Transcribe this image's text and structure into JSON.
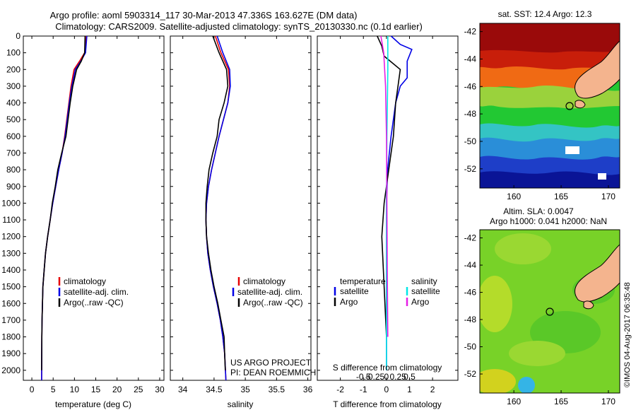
{
  "title": {
    "line1": "Argo profile: aoml 5903314_117 30-Mar-2013 47.336S 163.627E (DM data)",
    "line2": "Climatology: CARS2009. Satellite-adjusted climatology: synTS_20130330.nc (0.1d earlier)"
  },
  "colors": {
    "climatology": "#e60000",
    "satellite": "#0000e6",
    "argo": "#000000",
    "argo_salinity_diff": "#e61ee6",
    "satellite_salinity_diff": "#00e6e6"
  },
  "depth_axis": {
    "ticks": [
      "0",
      "100",
      "200",
      "300",
      "400",
      "500",
      "600",
      "700",
      "800",
      "900",
      "1000",
      "1100",
      "1200",
      "1300",
      "1400",
      "1500",
      "1600",
      "1700",
      "1800",
      "1900",
      "2000"
    ],
    "range": [
      0,
      2060
    ]
  },
  "temp_panel": {
    "xlabel": "temperature (deg C)",
    "xticks": [
      "0",
      "5",
      "10",
      "15",
      "20",
      "25",
      "30"
    ],
    "xlim": [
      -2,
      31
    ],
    "legend": [
      "climatology",
      "satellite-adj. clim.",
      "Argo(..raw -QC)"
    ]
  },
  "sal_panel": {
    "xlabel": "salinity",
    "xticks": [
      "34",
      "34.5",
      "35",
      "35.5",
      "36"
    ],
    "xlim": [
      33.8,
      36.05
    ],
    "legend": [
      "climatology",
      "satellite-adj. clim.",
      "Argo(..raw -QC)"
    ],
    "credit1": "US ARGO PROJECT",
    "credit2": "PI: DEAN ROEMMICH"
  },
  "diff_panel": {
    "xlabel": "T difference from climatology",
    "xticks": [
      "-2",
      "-1",
      "0",
      "1",
      "2"
    ],
    "xlim": [
      -3,
      3.1
    ],
    "top_label": "S difference from climatology",
    "sticks": [
      "-0.5",
      "-0.25",
      "0",
      "0.25",
      "0.5"
    ],
    "legend_temp_title": "temperature",
    "legend_sal_title": "salinity",
    "legend_items": [
      "satellite",
      "Argo"
    ]
  },
  "map_sst": {
    "title": "sat. SST: 12.4  Argo: 12.3",
    "xticks": [
      "160",
      "165",
      "170"
    ],
    "yticks": [
      "-42",
      "-44",
      "-46",
      "-48",
      "-50",
      "-52"
    ],
    "xlim": [
      156.4,
      171.2
    ],
    "ylim": [
      -53.4,
      -41.4
    ]
  },
  "map_sla": {
    "title1": "Altim. SLA: 0.0047",
    "title2": "Argo h1000: 0.041 h2000: NaN",
    "xticks": [
      "160",
      "165",
      "170"
    ],
    "yticks": [
      "-42",
      "-44",
      "-46",
      "-48",
      "-50",
      "-52"
    ],
    "xlim": [
      156.4,
      171.2
    ],
    "ylim": [
      -53.4,
      -41.4
    ]
  },
  "stamp": "©IMOS 04-Aug-2017 06:35:48",
  "chart_data": [
    {
      "type": "line",
      "panel": "temperature",
      "xlabel": "temperature (deg C)",
      "ylabel": "",
      "xlim": [
        -2,
        31
      ],
      "ylim": [
        2060,
        0
      ],
      "series": [
        {
          "name": "climatology",
          "x": [
            12.8,
            12.4,
            11.2,
            9.9,
            9.2,
            8.7,
            8.2,
            7.7,
            7.1,
            6.3,
            5.6,
            4.9,
            4.3,
            3.7,
            3.2,
            2.9,
            2.6,
            2.5,
            2.4,
            2.35,
            2.3
          ],
          "y": [
            0,
            100,
            150,
            200,
            300,
            400,
            500,
            600,
            700,
            800,
            900,
            1000,
            1100,
            1200,
            1300,
            1400,
            1500,
            1600,
            1700,
            1800,
            2060
          ]
        },
        {
          "name": "satellite-adj. clim.",
          "x": [
            12.9,
            12.6,
            11.5,
            10.2,
            9.4,
            8.8,
            8.3,
            7.8,
            7.1,
            6.3,
            5.6,
            4.9,
            4.3,
            3.7,
            3.2,
            2.9,
            2.6,
            2.5,
            2.4,
            2.35,
            2.3
          ],
          "y": [
            0,
            100,
            150,
            200,
            300,
            400,
            500,
            600,
            700,
            800,
            900,
            1000,
            1100,
            1200,
            1300,
            1400,
            1500,
            1600,
            1700,
            1800,
            2060
          ]
        },
        {
          "name": "Argo(..raw -QC)",
          "x": [
            12.5,
            12.4,
            11.6,
            10.5,
            9.6,
            9.0,
            8.5,
            8.0,
            7.0,
            6.1,
            5.5,
            4.8,
            4.3,
            3.7,
            3.2,
            2.9,
            2.6,
            2.5,
            2.4,
            2.35,
            2.3
          ],
          "y": [
            0,
            100,
            150,
            200,
            300,
            400,
            500,
            600,
            700,
            800,
            900,
            1000,
            1100,
            1200,
            1300,
            1400,
            1500,
            1600,
            1700,
            1800,
            2000
          ]
        }
      ]
    },
    {
      "type": "line",
      "panel": "salinity",
      "xlabel": "salinity",
      "ylabel": "",
      "xlim": [
        33.8,
        36.05
      ],
      "ylim": [
        2060,
        0
      ],
      "series": [
        {
          "name": "climatology",
          "x": [
            34.52,
            34.61,
            34.73,
            34.75,
            34.72,
            34.65,
            34.58,
            34.52,
            34.46,
            34.41,
            34.38,
            34.37,
            34.38,
            34.4,
            34.44,
            34.49,
            34.55,
            34.6,
            34.64,
            34.67,
            34.69
          ],
          "y": [
            0,
            100,
            200,
            300,
            400,
            500,
            600,
            700,
            800,
            900,
            1000,
            1100,
            1200,
            1300,
            1400,
            1500,
            1600,
            1700,
            1800,
            1900,
            2060
          ]
        },
        {
          "name": "satellite-adj. clim.",
          "x": [
            34.55,
            34.64,
            34.75,
            34.76,
            34.72,
            34.65,
            34.58,
            34.52,
            34.46,
            34.41,
            34.38,
            34.37,
            34.38,
            34.4,
            34.44,
            34.49,
            34.55,
            34.6,
            34.64,
            34.67,
            34.69
          ],
          "y": [
            0,
            100,
            200,
            300,
            400,
            500,
            600,
            700,
            800,
            900,
            1000,
            1100,
            1200,
            1300,
            1400,
            1500,
            1600,
            1700,
            1800,
            1900,
            2060
          ]
        },
        {
          "name": "Argo(..raw -QC)",
          "x": [
            34.48,
            34.58,
            34.7,
            34.72,
            34.66,
            34.58,
            34.55,
            34.48,
            34.42,
            34.39,
            34.37,
            34.37,
            34.38,
            34.41,
            34.45,
            34.5,
            34.56,
            34.61,
            34.66,
            34.67,
            34.68
          ],
          "y": [
            0,
            100,
            200,
            300,
            400,
            500,
            600,
            700,
            800,
            900,
            1000,
            1100,
            1200,
            1300,
            1400,
            1500,
            1600,
            1700,
            1800,
            1900,
            2000
          ]
        }
      ]
    },
    {
      "type": "line",
      "panel": "differences",
      "xlabel": "T difference from climatology",
      "ylabel": "",
      "xlim": [
        -3,
        3.1
      ],
      "ylim": [
        2060,
        0
      ],
      "series": [
        {
          "name": "temperature satellite",
          "x": [
            0.2,
            0.6,
            1.1,
            0.9,
            0.9,
            0.6,
            0.4,
            0.2,
            0.05,
            0.0,
            0.0,
            0.0
          ],
          "y": [
            0,
            50,
            80,
            150,
            250,
            300,
            400,
            600,
            800,
            1000,
            1500,
            2000
          ]
        },
        {
          "name": "temperature Argo",
          "x": [
            -0.4,
            -0.2,
            -0.1,
            0.6,
            0.5,
            0.4,
            0.3,
            0.1,
            -0.1,
            -0.2,
            -0.1,
            0.0
          ],
          "y": [
            0,
            60,
            120,
            200,
            300,
            400,
            600,
            800,
            1000,
            1200,
            1500,
            1800
          ]
        },
        {
          "name": "salinity satellite",
          "x": [
            0.03,
            0.03,
            0.02,
            0.01,
            0.0,
            0.0,
            0.0
          ],
          "y": [
            0,
            200,
            400,
            600,
            1000,
            1500,
            2000
          ]
        },
        {
          "name": "salinity Argo",
          "x": [
            -0.12,
            -0.06,
            -0.02,
            0.0,
            0.01,
            0.02,
            0.03
          ],
          "y": [
            0,
            100,
            300,
            600,
            1000,
            1500,
            1800
          ]
        }
      ]
    }
  ]
}
